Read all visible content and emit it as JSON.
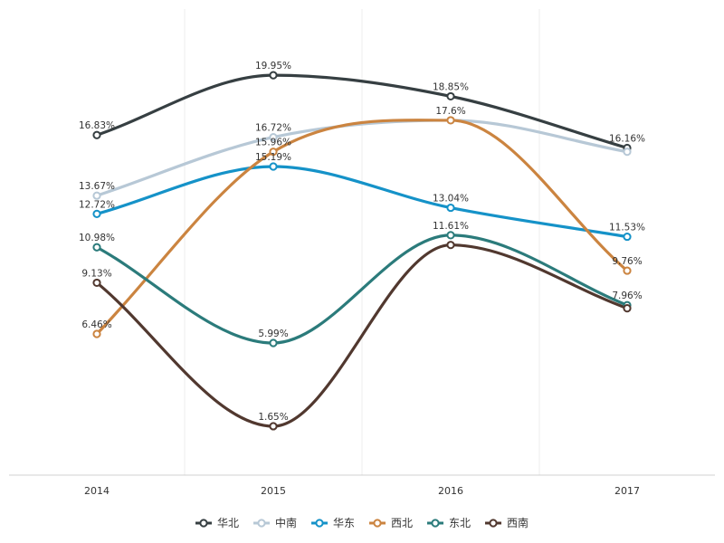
{
  "chart_data": {
    "type": "line",
    "categories": [
      "2014",
      "2015",
      "2016",
      "2017"
    ],
    "series": [
      {
        "name": "华北",
        "values": [
          16.83,
          19.95,
          18.85,
          16.16
        ],
        "color": "#363F42",
        "labels": [
          "16.83%",
          "19.95%",
          "18.85%",
          "16.16%"
        ]
      },
      {
        "name": "中南",
        "values": [
          13.67,
          16.72,
          17.6,
          15.96
        ],
        "color": "#B7C8D6",
        "labels": [
          "13.67%",
          "16.72%",
          "17.6%",
          ""
        ]
      },
      {
        "name": "华东",
        "values": [
          12.72,
          15.19,
          13.04,
          11.53
        ],
        "color": "#1592C8",
        "labels": [
          "12.72%",
          "15.19%",
          "13.04%",
          "11.53%"
        ]
      },
      {
        "name": "西北",
        "values": [
          6.46,
          15.96,
          17.6,
          9.76
        ],
        "color": "#CB8440",
        "labels": [
          "6.46%",
          "15.96%",
          "",
          "9.76%"
        ]
      },
      {
        "name": "东北",
        "values": [
          10.98,
          5.99,
          11.61,
          7.96
        ],
        "color": "#2B7B7B",
        "labels": [
          "10.98%",
          "5.99%",
          "11.61%",
          "7.96%"
        ]
      },
      {
        "name": "西南",
        "values": [
          9.13,
          1.65,
          11.1,
          7.8
        ],
        "color": "#51382F",
        "labels": [
          "9.13%",
          "1.65%",
          "",
          ""
        ]
      }
    ],
    "ylim": [
      -0.9,
      23.4
    ],
    "grid": "vertical",
    "legend": "bottom-center",
    "curve": "smooth"
  }
}
